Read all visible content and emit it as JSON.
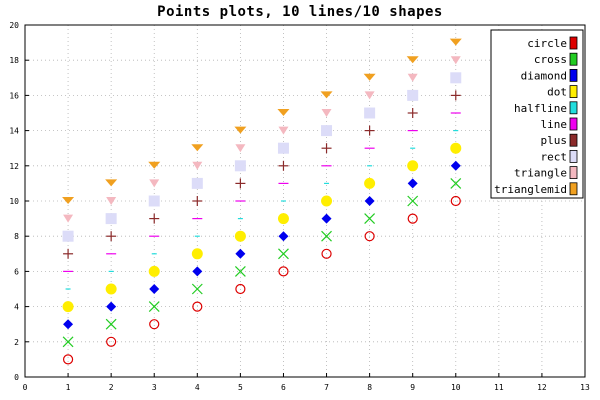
{
  "chart_data": {
    "type": "scatter",
    "title": "Points plots, 10 lines/10 shapes",
    "xlabel": "",
    "ylabel": "",
    "xlim": [
      0,
      13
    ],
    "ylim": [
      0,
      20
    ],
    "x_ticks": [
      "0",
      "1",
      "2",
      "3",
      "4",
      "5",
      "6",
      "7",
      "8",
      "9",
      "10",
      "11",
      "12",
      "13"
    ],
    "y_ticks": [
      "0",
      "2",
      "4",
      "6",
      "8",
      "10",
      "12",
      "14",
      "16",
      "18",
      "20"
    ],
    "grid": true,
    "legend_position": "top-right",
    "x": [
      1,
      2,
      3,
      4,
      5,
      6,
      7,
      8,
      9,
      10
    ],
    "series": [
      {
        "name": "circle",
        "shape": "circle",
        "color": "#dd0000",
        "values": [
          1,
          2,
          3,
          4,
          5,
          6,
          7,
          8,
          9,
          10
        ]
      },
      {
        "name": "cross",
        "shape": "cross",
        "color": "#22cc22",
        "values": [
          2,
          3,
          4,
          5,
          6,
          7,
          8,
          9,
          10,
          11
        ]
      },
      {
        "name": "diamond",
        "shape": "diamond",
        "color": "#0000ee",
        "values": [
          3,
          4,
          5,
          6,
          7,
          8,
          9,
          10,
          11,
          12
        ]
      },
      {
        "name": "dot",
        "shape": "dot",
        "color": "#ffee00",
        "values": [
          4,
          5,
          6,
          7,
          8,
          9,
          10,
          11,
          12,
          13
        ]
      },
      {
        "name": "halfline",
        "shape": "halfline",
        "color": "#22dddd",
        "values": [
          5,
          6,
          7,
          8,
          9,
          10,
          11,
          12,
          13,
          14
        ]
      },
      {
        "name": "line",
        "shape": "line",
        "color": "#ee00ee",
        "values": [
          6,
          7,
          8,
          9,
          10,
          11,
          12,
          13,
          14,
          15
        ]
      },
      {
        "name": "plus",
        "shape": "plus",
        "color": "#8b2a2a",
        "values": [
          7,
          8,
          9,
          10,
          11,
          12,
          13,
          14,
          15,
          16
        ]
      },
      {
        "name": "rect",
        "shape": "rect",
        "color": "#dcdcf8",
        "values": [
          8,
          9,
          10,
          11,
          12,
          13,
          14,
          15,
          16,
          17
        ]
      },
      {
        "name": "triangle",
        "shape": "triangle",
        "color": "#f4b8c0",
        "values": [
          9,
          10,
          11,
          12,
          13,
          14,
          15,
          16,
          17,
          18
        ]
      },
      {
        "name": "trianglemid",
        "shape": "trianglemid",
        "color": "#f0a020",
        "values": [
          10,
          11,
          12,
          13,
          14,
          15,
          16,
          17,
          18,
          19
        ]
      }
    ]
  }
}
